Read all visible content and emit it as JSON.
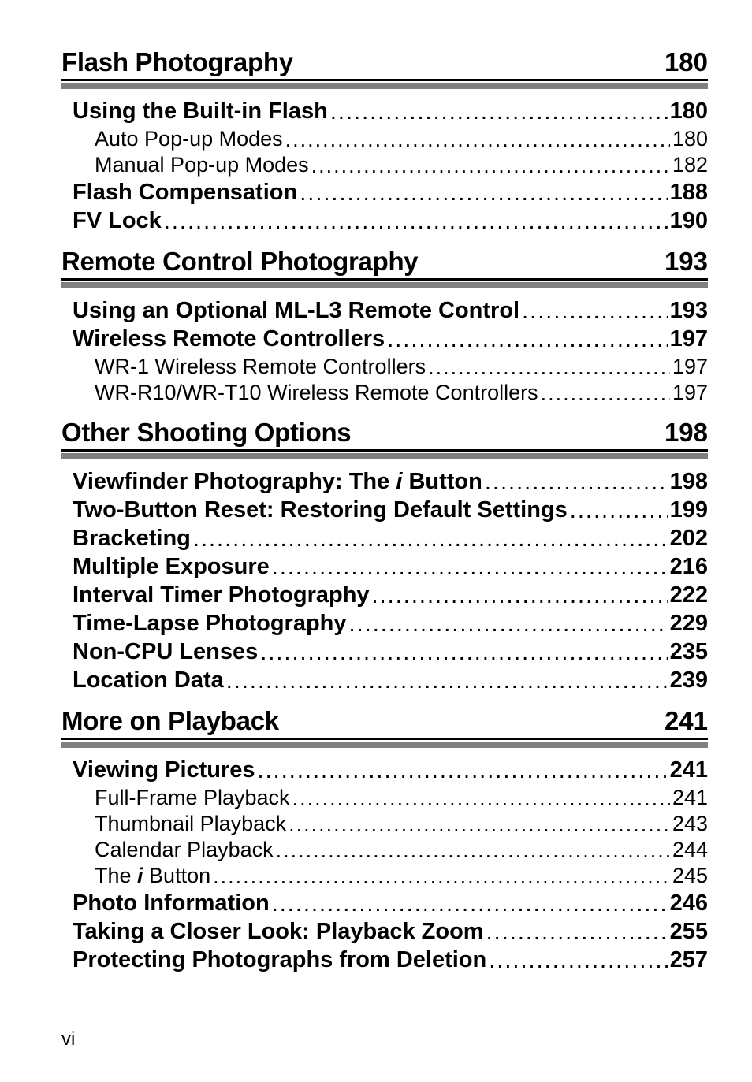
{
  "leaders_char": ".",
  "sections": [
    {
      "title": "Flash Photography",
      "page": "180",
      "entries": [
        {
          "level": 0,
          "label": "Using the Built-in Flash",
          "page": "180"
        },
        {
          "level": 1,
          "label": "Auto Pop-up Modes",
          "page": "180"
        },
        {
          "level": 1,
          "label": "Manual Pop-up Modes",
          "page": "182"
        },
        {
          "level": 0,
          "label": "Flash Compensation",
          "page": "188"
        },
        {
          "level": 0,
          "label": "FV Lock",
          "page": "190"
        }
      ]
    },
    {
      "title": "Remote Control Photography",
      "page": "193",
      "entries": [
        {
          "level": 0,
          "label": "Using an Optional ML-L3 Remote Control",
          "page": "193"
        },
        {
          "level": 0,
          "label": "Wireless Remote Controllers",
          "page": "197"
        },
        {
          "level": 1,
          "label": "WR-1 Wireless Remote Controllers",
          "page": "197"
        },
        {
          "level": 1,
          "label": "WR-R10/WR-T10 Wireless Remote Controllers",
          "page": "197"
        }
      ]
    },
    {
      "title": "Other Shooting Options",
      "page": "198",
      "entries": [
        {
          "level": 0,
          "label_html": "Viewfinder Photography: The <span class=\"italic-glyph\">i</span> Button",
          "page": "198"
        },
        {
          "level": 0,
          "label": "Two-Button Reset: Restoring Default Settings",
          "page": "199"
        },
        {
          "level": 0,
          "label": "Bracketing",
          "page": "202"
        },
        {
          "level": 0,
          "label": "Multiple Exposure",
          "page": "216"
        },
        {
          "level": 0,
          "label": "Interval Timer Photography",
          "page": "222"
        },
        {
          "level": 0,
          "label": "Time-Lapse Photography",
          "page": "229"
        },
        {
          "level": 0,
          "label": "Non-CPU Lenses",
          "page": "235"
        },
        {
          "level": 0,
          "label": "Location Data",
          "page": "239"
        }
      ]
    },
    {
      "title": "More on Playback",
      "page": "241",
      "entries": [
        {
          "level": 0,
          "label": "Viewing Pictures",
          "page": "241"
        },
        {
          "level": 1,
          "label": "Full-Frame Playback",
          "page": "241"
        },
        {
          "level": 1,
          "label": "Thumbnail Playback",
          "page": "243"
        },
        {
          "level": 1,
          "label": "Calendar Playback",
          "page": "244"
        },
        {
          "level": 1,
          "label_html": "The <span class=\"italic-glyph\">i</span> Button",
          "page": "245"
        },
        {
          "level": 0,
          "label": "Photo Information",
          "page": "246"
        },
        {
          "level": 0,
          "label": "Taking a Closer Look: Playback Zoom",
          "page": "255"
        },
        {
          "level": 0,
          "label": "Protecting Photographs from Deletion",
          "page": "257"
        }
      ]
    }
  ],
  "footer_page": "vi"
}
